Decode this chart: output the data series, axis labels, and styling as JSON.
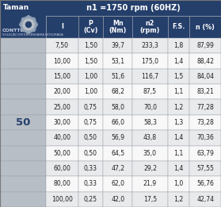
{
  "title": "n1 =1750 rpm (60HZ)",
  "tamanho_label": "Taman",
  "size_value": "50",
  "col_headers": [
    "I",
    "P\n(Cv)",
    "Mn\n(Nm)",
    "n2\n(rpm)",
    "F.S.",
    "n (%)"
  ],
  "rows": [
    [
      "7,50",
      "1,50",
      "39,7",
      "233,3",
      "1,8",
      "87,99"
    ],
    [
      "10,00",
      "1,50",
      "53,1",
      "175,0",
      "1,4",
      "88,42"
    ],
    [
      "15,00",
      "1,00",
      "51,6",
      "116,7",
      "1,5",
      "84,04"
    ],
    [
      "20,00",
      "1,00",
      "68,2",
      "87,5",
      "1,1",
      "83,21"
    ],
    [
      "25,00",
      "0,75",
      "58,0",
      "70,0",
      "1,2",
      "77,28"
    ],
    [
      "30,00",
      "0,75",
      "66,0",
      "58,3",
      "1,3",
      "73,28"
    ],
    [
      "40,00",
      "0,50",
      "56,9",
      "43,8",
      "1,4",
      "70,36"
    ],
    [
      "50,00",
      "0,50",
      "64,5",
      "35,0",
      "1,1",
      "63,79"
    ],
    [
      "60,00",
      "0,33",
      "47,2",
      "29,2",
      "1,4",
      "57,55"
    ],
    [
      "80,00",
      "0,33",
      "62,0",
      "21,9",
      "1,0",
      "56,76"
    ],
    [
      "100,00",
      "0,25",
      "42,0",
      "17,5",
      "1,2",
      "42,74"
    ]
  ],
  "header_bg": "#253f6b",
  "header_text_color": "#ffffff",
  "row_bg_even": "#e8eaec",
  "row_bg_odd": "#f8f8f8",
  "left_panel_bg": "#b8bec6",
  "border_color": "#9aa0a8",
  "size_text_color": "#253f6b",
  "title_fontsize": 7.0,
  "header_fontsize": 5.8,
  "data_fontsize": 5.6,
  "size_fontsize": 9.5,
  "taman_fontsize": 6.5,
  "conttec_fontsize": 4.5
}
